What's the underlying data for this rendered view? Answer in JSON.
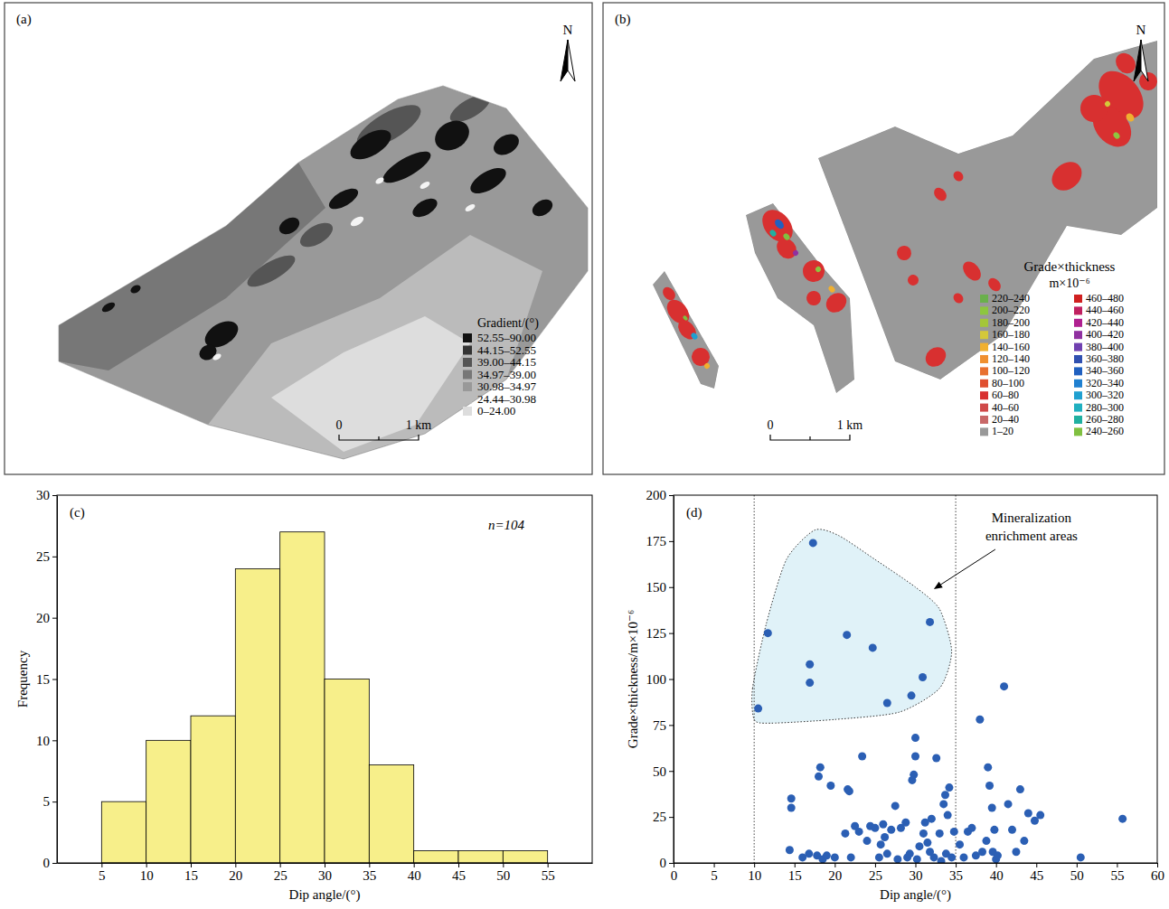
{
  "chart_data": [
    {
      "type": "map",
      "panel": "(a)",
      "north": "N",
      "legend_title": "Gradient/(°)",
      "series": [
        {
          "name": "52.55–90.00",
          "color": "#111111"
        },
        {
          "name": "44.15–52.55",
          "color": "#333333"
        },
        {
          "name": "39.00–44.15",
          "color": "#555555"
        },
        {
          "name": "34.97–39.00",
          "color": "#777777"
        },
        {
          "name": "30.98–34.97",
          "color": "#999999"
        },
        {
          "name": "24.44–30.98",
          "color": "#bbbbbb"
        },
        {
          "name": "0–24.00",
          "color": "#dddddd"
        }
      ],
      "scale_bar": [
        "0",
        "1 km"
      ]
    },
    {
      "type": "map",
      "panel": "(b)",
      "north": "N",
      "legend_title": "Grade×thickness",
      "legend_unit": "m×10⁻⁶",
      "series": [
        {
          "name": "220–240",
          "color": "#6ab04c"
        },
        {
          "name": "200–220",
          "color": "#8dc63f"
        },
        {
          "name": "180–200",
          "color": "#a4c639"
        },
        {
          "name": "160–180",
          "color": "#d4c83a"
        },
        {
          "name": "140–160",
          "color": "#f0b030"
        },
        {
          "name": "120–140",
          "color": "#f09030"
        },
        {
          "name": "100–120",
          "color": "#e87030"
        },
        {
          "name": "80–100",
          "color": "#e05030"
        },
        {
          "name": "60–80",
          "color": "#d83030"
        },
        {
          "name": "40–60",
          "color": "#d04848"
        },
        {
          "name": "20–40",
          "color": "#c86868"
        },
        {
          "name": "1–20",
          "color": "#999999"
        },
        {
          "name": "460–480",
          "color": "#d02020"
        },
        {
          "name": "440–460",
          "color": "#c02060"
        },
        {
          "name": "420–440",
          "color": "#b02090"
        },
        {
          "name": "400–420",
          "color": "#9030a0"
        },
        {
          "name": "380–400",
          "color": "#7040b0"
        },
        {
          "name": "360–380",
          "color": "#3050b0"
        },
        {
          "name": "340–360",
          "color": "#2060c0"
        },
        {
          "name": "320–340",
          "color": "#2080d0"
        },
        {
          "name": "300–320",
          "color": "#20a0d0"
        },
        {
          "name": "280–300",
          "color": "#20b0c0"
        },
        {
          "name": "260–280",
          "color": "#20b0a0"
        },
        {
          "name": "240–260",
          "color": "#80c040"
        }
      ],
      "scale_bar": [
        "0",
        "1 km"
      ]
    },
    {
      "type": "histogram",
      "panel": "(c)",
      "x_label": "Dip angle/(°)",
      "y_label": "Frequency",
      "annotation": "n=104",
      "bins": [
        5,
        10,
        15,
        20,
        25,
        30,
        35,
        40,
        45,
        50,
        55
      ],
      "values": [
        5,
        10,
        12,
        24,
        27,
        15,
        8,
        1,
        1,
        1
      ],
      "color": "#f7ef8a",
      "xlim": [
        0,
        60
      ],
      "ylim": [
        0,
        30
      ],
      "xticks": [
        5,
        10,
        15,
        20,
        25,
        30,
        35,
        40,
        45,
        50,
        55
      ],
      "yticks": [
        0,
        5,
        10,
        15,
        20,
        25,
        30
      ]
    },
    {
      "type": "scatter",
      "panel": "(d)",
      "x_label": "Dip angle/(°)",
      "y_label": "Grade×thickness/m×10⁻⁶",
      "x": [
        10.5,
        11.7,
        17.3,
        16.9,
        16.9,
        21.5,
        24.7,
        26.5,
        29.5,
        30.9,
        31.8,
        14.6,
        14.6,
        14.4,
        16,
        16.8,
        17.8,
        18.2,
        18,
        18.5,
        19,
        19.5,
        20,
        21.3,
        21.6,
        21.8,
        22,
        22.5,
        23,
        23.4,
        24,
        24.4,
        25,
        25.5,
        25.7,
        26,
        26.2,
        26.5,
        27,
        27.5,
        27.8,
        28.2,
        28.8,
        29,
        29.3,
        29.6,
        29.8,
        30,
        30,
        30.2,
        30.5,
        31,
        31.2,
        31.5,
        31.8,
        32,
        32.3,
        32.6,
        33,
        33.2,
        33.5,
        33.7,
        33.8,
        34,
        34.2,
        34.5,
        34.8,
        35.5,
        36,
        36.5,
        37,
        37.5,
        38,
        38.3,
        38.8,
        39,
        39.2,
        39.5,
        39.6,
        39.8,
        40,
        40.2,
        41,
        41.5,
        42,
        42.5,
        43,
        43.5,
        44,
        44.8,
        45.5,
        50.5,
        55.7
      ],
      "y": [
        84,
        125,
        174,
        108,
        98,
        124,
        117,
        87,
        91,
        101,
        131,
        35,
        30,
        7,
        3,
        5,
        4,
        52,
        47,
        2,
        4,
        42,
        3,
        16,
        40,
        39,
        3,
        20,
        17,
        58,
        12,
        20,
        19,
        3,
        10,
        21,
        14,
        5,
        18,
        31,
        2,
        19,
        22,
        3,
        5,
        45,
        48,
        58,
        68,
        2,
        9,
        16,
        22,
        11,
        6,
        24,
        3,
        57,
        16,
        1,
        32,
        37,
        5,
        26,
        41,
        3,
        17,
        10,
        3,
        17,
        19,
        4,
        78,
        6,
        12,
        52,
        42,
        30,
        6,
        18,
        2,
        4,
        96,
        32,
        18,
        6,
        40,
        12,
        27,
        23,
        26,
        3,
        24
      ],
      "color": "#2b5fb4",
      "xlim": [
        0,
        60
      ],
      "ylim": [
        0,
        200
      ],
      "xticks": [
        0,
        5,
        10,
        15,
        20,
        25,
        30,
        35,
        40,
        45,
        50,
        55,
        60
      ],
      "yticks": [
        0,
        25,
        50,
        75,
        100,
        125,
        150,
        175,
        200
      ],
      "reference_lines": [
        10,
        35
      ],
      "region": {
        "name": "Mineralization enrichment areas",
        "color": "#e0f2f8",
        "x": [
          10,
          9.8,
          11.5,
          14,
          17.5,
          20.5,
          25,
          30,
          33,
          34.5,
          33,
          28,
          20,
          12
        ],
        "y": [
          78,
          95,
          130,
          165,
          181,
          178,
          165,
          150,
          138,
          115,
          95,
          82,
          78,
          76
        ]
      }
    }
  ]
}
